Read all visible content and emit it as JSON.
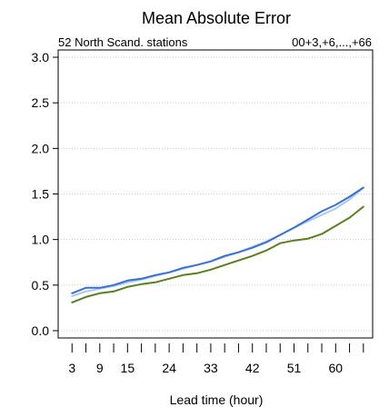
{
  "chart_data": {
    "type": "line",
    "title": "Mean Absolute Error",
    "subtitle_left": "52 North Scand. stations",
    "subtitle_right": "00+3,+6,...,+66",
    "xlabel": "Lead time (hour)",
    "ylabel": "",
    "x_tick_labels": [
      "3",
      "9",
      "15",
      "24",
      "33",
      "42",
      "51",
      "60"
    ],
    "x_tick_values": [
      3,
      9,
      15,
      24,
      33,
      42,
      51,
      60
    ],
    "y_tick_labels": [
      "0.0",
      "0.5",
      "1.0",
      "1.5",
      "2.0",
      "2.5",
      "3.0"
    ],
    "y_tick_values": [
      0.0,
      0.5,
      1.0,
      1.5,
      2.0,
      2.5,
      3.0
    ],
    "xlim": [
      0,
      68
    ],
    "ylim": [
      -0.08,
      3.08
    ],
    "grid": true,
    "x": [
      3,
      6,
      9,
      12,
      15,
      18,
      21,
      24,
      27,
      30,
      33,
      36,
      39,
      42,
      45,
      48,
      51,
      54,
      57,
      60,
      63,
      66
    ],
    "series": [
      {
        "color": "#a8c8ee",
        "values": [
          0.38,
          0.43,
          0.46,
          0.49,
          0.53,
          0.56,
          0.6,
          0.64,
          0.68,
          0.72,
          0.76,
          0.81,
          0.86,
          0.92,
          0.98,
          1.05,
          1.13,
          1.2,
          1.27,
          1.34,
          1.44,
          1.57
        ]
      },
      {
        "color": "#3a6fd8",
        "values": [
          0.41,
          0.47,
          0.47,
          0.5,
          0.55,
          0.57,
          0.61,
          0.64,
          0.69,
          0.72,
          0.76,
          0.82,
          0.86,
          0.91,
          0.97,
          1.05,
          1.13,
          1.22,
          1.31,
          1.38,
          1.47,
          1.57
        ]
      },
      {
        "color": "#5a7f1e",
        "values": [
          0.31,
          0.37,
          0.41,
          0.43,
          0.48,
          0.51,
          0.53,
          0.57,
          0.61,
          0.63,
          0.67,
          0.72,
          0.77,
          0.82,
          0.88,
          0.96,
          0.99,
          1.01,
          1.06,
          1.15,
          1.24,
          1.36
        ]
      }
    ]
  }
}
